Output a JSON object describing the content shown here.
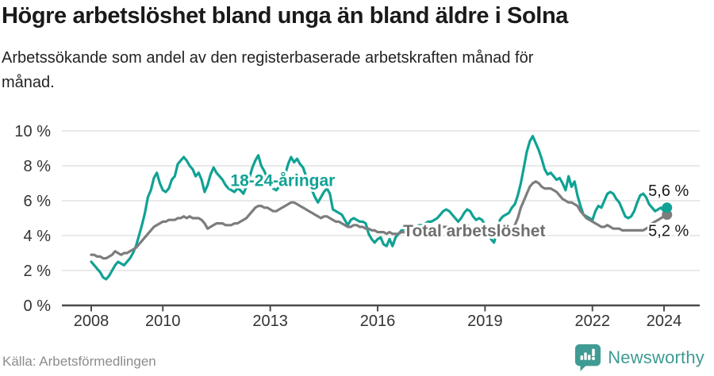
{
  "footer": {
    "source": "Källa: Arbetsförmedlingen",
    "brand": "Newsworthy"
  },
  "colors": {
    "young_line": "#10A294",
    "total_line": "#7D7D7D",
    "total_label": "#6F6F6F",
    "axis": "#4A4A4A",
    "gridline": "#DCDCDC",
    "tick_text": "#333333",
    "end_label_text": "#1A1A1A",
    "brand_teal": "#3F9B93"
  },
  "chart_data": {
    "type": "line",
    "title": "Högre arbetslöshet bland unga än bland äldre i Solna",
    "subtitle": "Arbetssökande som andel av den registerbaserade arbetskraften månad för månad.",
    "x_unit": "monthly, decimal years",
    "x_start": 2008.0,
    "x_step": 0.0833,
    "x_ticks": [
      2008,
      2010,
      2013,
      2016,
      2019,
      2022,
      2024
    ],
    "y_ticks": [
      0,
      2,
      4,
      6,
      8,
      10
    ],
    "y_suffix": " %",
    "ylim": [
      0,
      10
    ],
    "grid": true,
    "legend": "inline-labels",
    "series": [
      {
        "name": "18-24-åringar",
        "color": "#10A294",
        "label_color": "#10A294",
        "label_x": 2013.35,
        "label_y": 7.15,
        "end_label": "5,6 %",
        "end_value": 5.6,
        "values": [
          2.5,
          2.3,
          2.1,
          1.9,
          1.6,
          1.5,
          1.7,
          2.0,
          2.3,
          2.5,
          2.4,
          2.3,
          2.5,
          2.7,
          3.0,
          3.4,
          4.0,
          4.6,
          5.3,
          6.2,
          6.6,
          7.3,
          7.6,
          7.0,
          6.6,
          6.5,
          6.7,
          7.2,
          7.4,
          8.1,
          8.3,
          8.5,
          8.3,
          8.0,
          7.8,
          7.4,
          7.6,
          7.2,
          6.5,
          6.9,
          7.5,
          7.9,
          7.6,
          7.4,
          7.2,
          6.9,
          6.7,
          6.6,
          6.5,
          6.7,
          6.6,
          6.4,
          6.8,
          7.3,
          7.9,
          8.3,
          8.6,
          8.0,
          7.7,
          7.3,
          7.0,
          6.7,
          6.6,
          6.8,
          7.0,
          7.5,
          8.1,
          8.5,
          8.2,
          8.4,
          8.1,
          7.9,
          7.4,
          7.0,
          6.6,
          6.2,
          5.9,
          6.2,
          6.5,
          6.7,
          6.4,
          5.5,
          5.4,
          5.3,
          5.2,
          4.9,
          4.6,
          4.9,
          5.0,
          4.9,
          4.8,
          4.8,
          4.7,
          4.1,
          3.8,
          3.6,
          3.8,
          3.9,
          3.5,
          3.4,
          3.8,
          3.4,
          3.9,
          4.1,
          4.3,
          4.4,
          4.3,
          4.4,
          4.5,
          4.5,
          4.6,
          4.6,
          4.7,
          4.8,
          4.8,
          4.9,
          5.0,
          5.2,
          5.4,
          5.5,
          5.4,
          5.2,
          5.0,
          4.8,
          5.0,
          5.3,
          5.5,
          5.4,
          5.1,
          4.9,
          5.0,
          4.9,
          4.6,
          4.2,
          3.8,
          3.6,
          4.2,
          4.9,
          5.1,
          5.2,
          5.3,
          5.6,
          5.8,
          6.3,
          7.0,
          7.9,
          8.8,
          9.4,
          9.7,
          9.3,
          8.9,
          8.4,
          7.8,
          7.5,
          7.6,
          7.4,
          7.2,
          7.3,
          7.0,
          6.6,
          7.4,
          6.8,
          7.1,
          6.3,
          5.7,
          5.2,
          5.1,
          5.0,
          4.9,
          5.4,
          5.7,
          5.6,
          6.0,
          6.4,
          6.5,
          6.4,
          6.1,
          5.9,
          5.5,
          5.1,
          5.0,
          5.1,
          5.4,
          5.9,
          6.3,
          6.4,
          6.2,
          5.8,
          5.6,
          5.4,
          5.5,
          5.6,
          5.4,
          5.6
        ]
      },
      {
        "name": "Total arbetslöshet",
        "color": "#7D7D7D",
        "label_color": "#6F6F6F",
        "label_x": 2018.7,
        "label_y": 4.27,
        "end_label": "5,2 %",
        "end_value": 5.2,
        "values": [
          2.9,
          2.9,
          2.8,
          2.8,
          2.7,
          2.7,
          2.8,
          2.9,
          3.1,
          3.0,
          2.9,
          3.0,
          3.0,
          3.1,
          3.2,
          3.3,
          3.5,
          3.7,
          3.9,
          4.1,
          4.3,
          4.5,
          4.6,
          4.7,
          4.8,
          4.8,
          4.9,
          4.9,
          4.9,
          5.0,
          5.0,
          5.1,
          5.0,
          5.1,
          5.0,
          5.0,
          5.0,
          4.9,
          4.7,
          4.4,
          4.5,
          4.6,
          4.7,
          4.7,
          4.7,
          4.6,
          4.6,
          4.6,
          4.7,
          4.7,
          4.8,
          4.9,
          5.0,
          5.2,
          5.4,
          5.6,
          5.7,
          5.7,
          5.6,
          5.6,
          5.5,
          5.4,
          5.4,
          5.5,
          5.6,
          5.7,
          5.8,
          5.9,
          5.9,
          5.8,
          5.7,
          5.6,
          5.5,
          5.4,
          5.3,
          5.2,
          5.1,
          5.0,
          5.1,
          5.1,
          5.0,
          4.9,
          4.8,
          4.8,
          4.7,
          4.6,
          4.5,
          4.5,
          4.6,
          4.6,
          4.5,
          4.5,
          4.4,
          4.4,
          4.3,
          4.3,
          4.2,
          4.2,
          4.2,
          4.1,
          4.2,
          4.1,
          4.1,
          4.1,
          4.2,
          4.2,
          4.2,
          4.3,
          4.3,
          4.3,
          4.3,
          4.4,
          4.4,
          4.4,
          4.4,
          4.4,
          4.5,
          4.5,
          4.5,
          4.5,
          4.5,
          4.4,
          4.4,
          4.5,
          4.5,
          4.5,
          4.6,
          4.5,
          4.4,
          4.4,
          4.4,
          4.4,
          4.3,
          4.3,
          4.2,
          4.2,
          4.2,
          4.3,
          4.3,
          4.3,
          4.3,
          4.4,
          4.6,
          5.0,
          5.6,
          6.0,
          6.4,
          6.8,
          7.0,
          7.1,
          7.0,
          6.8,
          6.7,
          6.7,
          6.7,
          6.6,
          6.5,
          6.3,
          6.1,
          6.0,
          5.9,
          5.9,
          5.8,
          5.7,
          5.4,
          5.2,
          5.0,
          4.9,
          4.8,
          4.7,
          4.6,
          4.5,
          4.5,
          4.6,
          4.5,
          4.4,
          4.4,
          4.4,
          4.3,
          4.3,
          4.3,
          4.3,
          4.3,
          4.3,
          4.3,
          4.3,
          4.4,
          4.5,
          4.7,
          4.8,
          4.9,
          5.0,
          5.1,
          5.2
        ]
      }
    ]
  }
}
